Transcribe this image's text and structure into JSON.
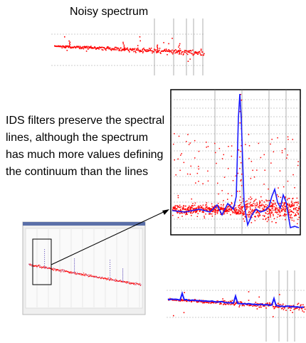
{
  "title": "Noisy spectrum",
  "caption": "IDS filters preserve the spectral lines, although the spectrum has much more values defining the continuum than the lines",
  "colors": {
    "noise": "#ff0000",
    "filtered": "#1a1aff",
    "frame": "#000000",
    "grid": "#9a9a9a",
    "thumb_background": "#efefef",
    "thumb_titlebar": "#5a6fa8"
  }
}
